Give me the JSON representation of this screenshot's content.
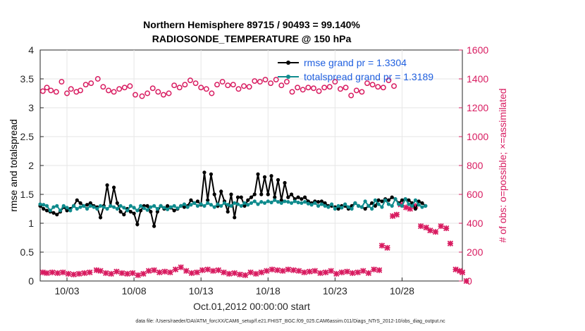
{
  "chart_data": {
    "type": "line",
    "title_line1": "Northern Hemisphere 89715 / 90493 = 99.140%",
    "title_line2": "RADIOSONDE_TEMPERATURE @ 150 hPa",
    "xlabel": "Oct.01,2012 00:00:00 start",
    "ylabel_left": "rmse and totalspread",
    "ylabel_right": "# of obs: o=possible; ×=assimilated",
    "footer": "data file: /Users/raeder/DAI/ATM_forcXX/CAM6_setup/f.e21.FHIST_BGC.f09_025.CAM6assim.011/Diags_NTrS_2012-10/obs_diag_output.nc",
    "xlim": [
      1,
      32.5
    ],
    "ylim_left": [
      0,
      4
    ],
    "ylim_right": [
      0,
      1600
    ],
    "x_ticks": [
      3,
      8,
      13,
      18,
      23,
      28
    ],
    "x_tick_labels": [
      "10/03",
      "10/08",
      "10/13",
      "10/18",
      "10/23",
      "10/28"
    ],
    "y_left_ticks": [
      "0",
      "0.5",
      "1",
      "1.5",
      "2",
      "2.5",
      "3",
      "3.5",
      "4"
    ],
    "y_right_ticks": [
      "0",
      "200",
      "400",
      "600",
      "800",
      "1000",
      "1200",
      "1400",
      "1600"
    ],
    "legend_position": "top-right",
    "x_step_days": 0.25,
    "x_start": 1.0,
    "series": [
      {
        "name": "rmse grand pr = 1.3304",
        "axis": "left",
        "color": "#000000",
        "marker": "dot",
        "values": [
          1.3,
          1.25,
          1.22,
          1.2,
          1.18,
          1.15,
          1.2,
          1.28,
          1.22,
          1.25,
          1.3,
          1.4,
          1.35,
          1.3,
          1.32,
          1.35,
          1.3,
          1.28,
          1.1,
          1.3,
          1.66,
          1.3,
          1.62,
          1.35,
          1.2,
          1.15,
          1.25,
          1.2,
          1.17,
          0.98,
          1.22,
          1.3,
          1.3,
          1.2,
          0.95,
          1.2,
          1.3,
          1.25,
          1.3,
          1.27,
          1.22,
          1.25,
          1.3,
          1.28,
          1.3,
          1.4,
          1.35,
          1.38,
          1.32,
          1.88,
          1.4,
          1.85,
          1.5,
          1.3,
          1.55,
          1.38,
          1.2,
          1.5,
          1.1,
          1.45,
          1.45,
          1.3,
          1.4,
          1.45,
          1.5,
          1.85,
          1.5,
          1.8,
          1.5,
          1.82,
          1.45,
          1.75,
          1.4,
          1.7,
          1.45,
          1.5,
          1.42,
          1.45,
          1.42,
          1.45,
          1.38,
          1.35,
          1.38,
          1.37,
          1.38,
          1.35,
          1.3,
          1.3,
          1.28,
          1.25,
          1.3,
          1.3,
          1.25,
          1.3,
          1.35,
          1.3,
          1.28,
          1.25,
          1.3,
          1.35,
          1.3,
          1.4,
          1.38,
          1.42,
          1.4,
          1.45,
          1.42,
          1.35,
          1.4,
          1.42,
          1.4,
          1.35,
          1.25,
          1.38,
          1.35,
          1.3
        ]
      },
      {
        "name": "totalspread grand pr = 1.3189",
        "axis": "left",
        "color": "#0f8b8d",
        "marker": "dot",
        "values": [
          1.33,
          1.32,
          1.3,
          1.22,
          1.28,
          1.3,
          1.22,
          1.3,
          1.27,
          1.22,
          1.3,
          1.25,
          1.28,
          1.3,
          1.25,
          1.3,
          1.28,
          1.25,
          1.3,
          1.28,
          1.25,
          1.3,
          1.28,
          1.25,
          1.3,
          1.27,
          1.22,
          1.3,
          1.27,
          1.22,
          1.3,
          1.26,
          1.23,
          1.28,
          1.3,
          1.25,
          1.3,
          1.27,
          1.24,
          1.28,
          1.3,
          1.26,
          1.3,
          1.33,
          1.28,
          1.32,
          1.35,
          1.3,
          1.33,
          1.3,
          1.35,
          1.32,
          1.28,
          1.33,
          1.3,
          1.35,
          1.32,
          1.3,
          1.35,
          1.33,
          1.3,
          1.35,
          1.32,
          1.35,
          1.38,
          1.33,
          1.37,
          1.35,
          1.38,
          1.36,
          1.4,
          1.37,
          1.35,
          1.38,
          1.37,
          1.35,
          1.38,
          1.36,
          1.35,
          1.37,
          1.34,
          1.32,
          1.35,
          1.3,
          1.33,
          1.3,
          1.28,
          1.33,
          1.25,
          1.3,
          1.27,
          1.33,
          1.28,
          1.25,
          1.35,
          1.3,
          1.28,
          1.38,
          1.3,
          1.25,
          1.4,
          1.33,
          1.28,
          1.4,
          1.33,
          1.3,
          1.42,
          1.33,
          1.3,
          1.42,
          1.33,
          1.3,
          1.4,
          1.32,
          1.28,
          1.3
        ]
      },
      {
        "name": "obs possible",
        "axis": "right",
        "color": "#d81b60",
        "marker": "o",
        "values": [
          1315,
          1340,
          1320,
          1310,
          1380,
          1300,
          1330,
          1310,
          1320,
          1360,
          1370,
          1400,
          1345,
          1320,
          1310,
          1330,
          1340,
          1350,
          1290,
          1280,
          1300,
          1335,
          1310,
          1290,
          1300,
          1355,
          1340,
          1360,
          1390,
          1370,
          1340,
          1330,
          1300,
          1360,
          1380,
          1355,
          1360,
          1330,
          1350,
          1345,
          1385,
          1380,
          1395,
          1370,
          1395,
          1355,
          1380,
          1310,
          1340,
          1325,
          1340,
          1335,
          1315,
          1340,
          1345,
          1380,
          1330,
          1340,
          1285,
          1320,
          1310,
          1370,
          1360,
          1345,
          1340,
          1390,
          1350
        ],
        "x": [
          1.2,
          1.5,
          1.8,
          2.2,
          2.6,
          3.0,
          3.3,
          3.7,
          4.0,
          4.4,
          4.8,
          5.3,
          5.7,
          6.1,
          6.5,
          6.9,
          7.3,
          7.7,
          8.1,
          8.6,
          9.0,
          9.4,
          9.8,
          10.2,
          10.6,
          11.0,
          11.4,
          11.8,
          12.2,
          12.6,
          13.0,
          13.4,
          13.8,
          14.2,
          14.6,
          15.0,
          15.4,
          15.8,
          16.2,
          16.6,
          17.0,
          17.4,
          17.8,
          18.2,
          18.6,
          19.0,
          19.4,
          19.8,
          20.2,
          20.6,
          21.0,
          21.4,
          21.8,
          22.2,
          22.6,
          23.0,
          23.4,
          23.8,
          24.2,
          24.6,
          25.0,
          25.4,
          25.8,
          26.2,
          26.6,
          27.0,
          27.4
        ]
      },
      {
        "name": "obs assimilated",
        "axis": "right",
        "color": "#d81b60",
        "marker": "x",
        "values": [
          60,
          55,
          60,
          55,
          60,
          50,
          45,
          50,
          55,
          60,
          75,
          70,
          55,
          50,
          65,
          55,
          50,
          55,
          40,
          50,
          70,
          75,
          60,
          65,
          60,
          80,
          95,
          70,
          55,
          60,
          75,
          80,
          70,
          75,
          60,
          50,
          55,
          45,
          40,
          60,
          50,
          60,
          70,
          80,
          75,
          70,
          80,
          75,
          70,
          60,
          65,
          70,
          55,
          60,
          70,
          50,
          60,
          65,
          55,
          60,
          70,
          55,
          80,
          75,
          245,
          230,
          450,
          460,
          530,
          510,
          500,
          520,
          380,
          370,
          350,
          340,
          380,
          365,
          260,
          80,
          70,
          60,
          0
        ],
        "x": [
          1.2,
          1.5,
          1.9,
          2.3,
          2.7,
          3.1,
          3.5,
          3.9,
          4.3,
          4.7,
          5.2,
          5.5,
          5.9,
          6.3,
          6.7,
          7.1,
          7.5,
          7.9,
          8.3,
          8.7,
          9.1,
          9.5,
          9.9,
          10.3,
          10.7,
          11.1,
          11.5,
          11.9,
          12.3,
          12.7,
          13.1,
          13.5,
          13.9,
          14.3,
          14.7,
          15.1,
          15.5,
          15.9,
          16.3,
          16.7,
          17.1,
          17.5,
          17.9,
          18.3,
          18.7,
          19.1,
          19.5,
          19.9,
          20.3,
          20.7,
          21.1,
          21.5,
          21.9,
          22.3,
          22.7,
          23.1,
          23.5,
          23.9,
          24.3,
          24.7,
          25.1,
          25.5,
          25.9,
          26.3,
          26.5,
          26.9,
          27.3,
          27.6,
          27.9,
          28.3,
          28.6,
          29.0,
          29.4,
          29.8,
          30.1,
          30.5,
          30.9,
          31.3,
          31.6,
          32.0,
          32.3,
          32.5,
          32.8
        ]
      }
    ]
  }
}
